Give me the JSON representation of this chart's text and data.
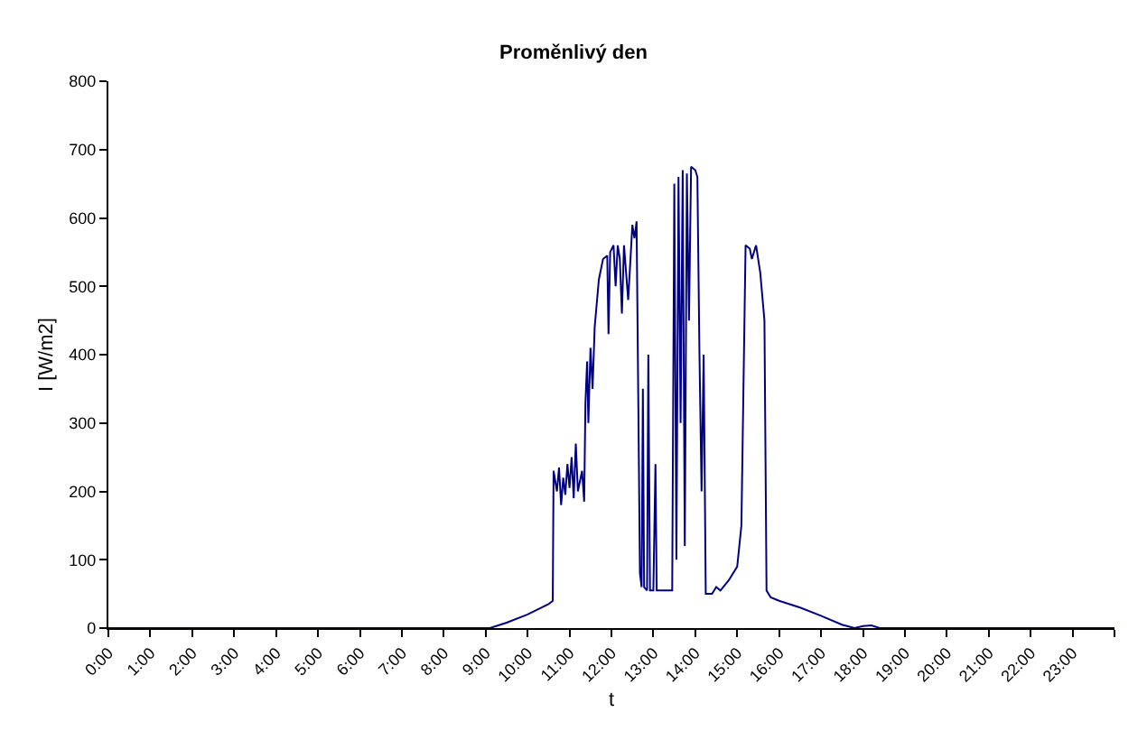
{
  "chart_data": {
    "type": "line",
    "title": "Proměnlivý den",
    "xlabel": "t",
    "ylabel": "I [W/m2]",
    "xlim": [
      0,
      24
    ],
    "xticks": [
      {
        "value": 0,
        "label": "0:00"
      },
      {
        "value": 1,
        "label": "1:00"
      },
      {
        "value": 2,
        "label": "2:00"
      },
      {
        "value": 3,
        "label": "3:00"
      },
      {
        "value": 4,
        "label": "4:00"
      },
      {
        "value": 5,
        "label": "5:00"
      },
      {
        "value": 6,
        "label": "6:00"
      },
      {
        "value": 7,
        "label": "7:00"
      },
      {
        "value": 8,
        "label": "8:00"
      },
      {
        "value": 9,
        "label": "9:00"
      },
      {
        "value": 10,
        "label": "10:00"
      },
      {
        "value": 11,
        "label": "11:00"
      },
      {
        "value": 12,
        "label": "12:00"
      },
      {
        "value": 13,
        "label": "13:00"
      },
      {
        "value": 14,
        "label": "14:00"
      },
      {
        "value": 15,
        "label": "15:00"
      },
      {
        "value": 16,
        "label": "16:00"
      },
      {
        "value": 17,
        "label": "17:00"
      },
      {
        "value": 18,
        "label": "18:00"
      },
      {
        "value": 19,
        "label": "19:00"
      },
      {
        "value": 20,
        "label": "20:00"
      },
      {
        "value": 21,
        "label": "21:00"
      },
      {
        "value": 22,
        "label": "22:00"
      },
      {
        "value": 23,
        "label": "23:00"
      },
      {
        "value": 24,
        "label": null
      }
    ],
    "ylim": [
      0,
      800
    ],
    "yticks": [
      0,
      100,
      200,
      300,
      400,
      500,
      600,
      700,
      800
    ],
    "grid": false,
    "marker": "none",
    "line_style": "solid",
    "series": [
      {
        "color": "#000080",
        "x": [
          0,
          9.1,
          9.5,
          10.0,
          10.5,
          10.6,
          10.62,
          10.7,
          10.75,
          10.8,
          10.85,
          10.9,
          10.95,
          11.0,
          11.05,
          11.1,
          11.15,
          11.2,
          11.3,
          11.35,
          11.38,
          11.42,
          11.45,
          11.5,
          11.55,
          11.6,
          11.7,
          11.8,
          11.9,
          11.93,
          11.97,
          12.05,
          12.1,
          12.15,
          12.2,
          12.25,
          12.3,
          12.35,
          12.4,
          12.5,
          12.55,
          12.6,
          12.68,
          12.72,
          12.75,
          12.78,
          12.85,
          12.88,
          12.92,
          13.0,
          13.05,
          13.08,
          13.45,
          13.5,
          13.55,
          13.6,
          13.65,
          13.7,
          13.75,
          13.8,
          13.85,
          13.9,
          14.0,
          14.05,
          14.1,
          14.15,
          14.2,
          14.25,
          14.4,
          14.5,
          14.6,
          14.8,
          15.0,
          15.1,
          15.2,
          15.3,
          15.35,
          15.45,
          15.55,
          15.65,
          15.7,
          15.8,
          16.0,
          16.5,
          17.0,
          17.5,
          17.8,
          18.0,
          18.2,
          18.4,
          24
        ],
        "values": [
          0,
          0,
          8,
          20,
          35,
          40,
          230,
          200,
          235,
          180,
          220,
          195,
          240,
          205,
          250,
          190,
          270,
          200,
          230,
          185,
          330,
          390,
          300,
          410,
          350,
          440,
          510,
          540,
          545,
          430,
          550,
          560,
          500,
          560,
          540,
          460,
          560,
          520,
          480,
          590,
          570,
          595,
          80,
          60,
          350,
          60,
          55,
          400,
          55,
          55,
          240,
          55,
          55,
          650,
          100,
          660,
          300,
          670,
          120,
          665,
          450,
          675,
          670,
          660,
          400,
          200,
          400,
          50,
          50,
          60,
          55,
          70,
          90,
          150,
          560,
          555,
          540,
          560,
          520,
          450,
          55,
          45,
          40,
          30,
          18,
          5,
          0,
          3,
          4,
          0,
          0
        ]
      }
    ]
  }
}
